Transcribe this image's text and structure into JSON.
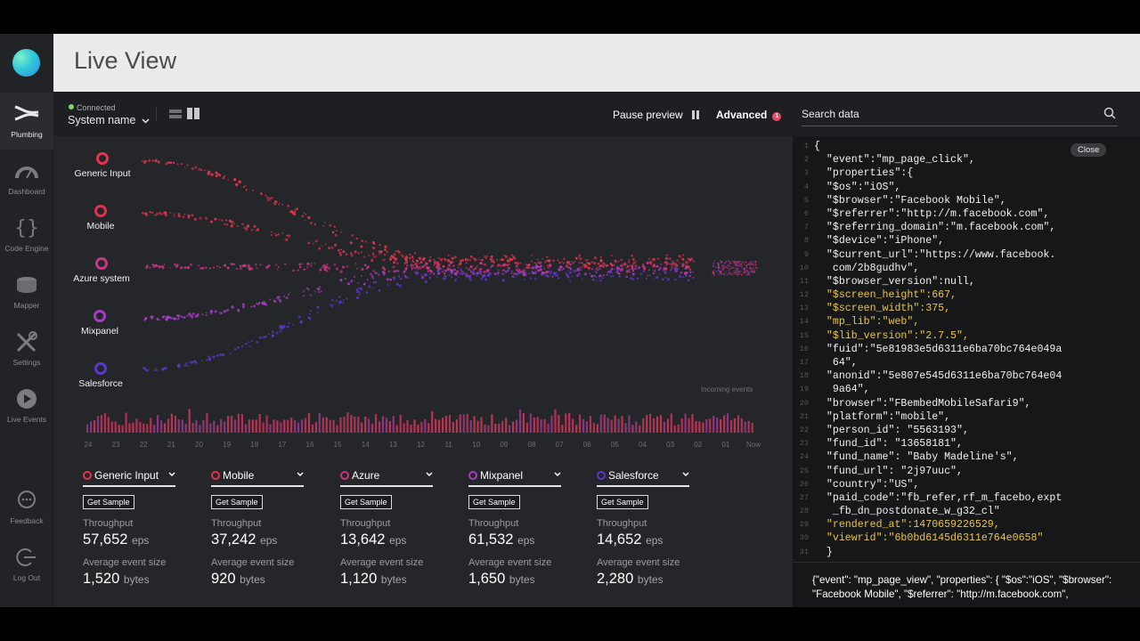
{
  "header": {
    "title": "Live View"
  },
  "sidebar": {
    "items": [
      {
        "label": "Plumbing",
        "icon": "plumbing-icon"
      },
      {
        "label": "Dashboard",
        "icon": "dashboard-icon"
      },
      {
        "label": "Code Engine",
        "icon": "code-engine-icon"
      },
      {
        "label": "Mapper",
        "icon": "mapper-icon"
      },
      {
        "label": "Settings",
        "icon": "settings-icon"
      },
      {
        "label": "Live Events",
        "icon": "live-events-icon"
      },
      {
        "label": "Feedback",
        "icon": "feedback-icon"
      },
      {
        "label": "Log Out",
        "icon": "logout-icon"
      }
    ]
  },
  "toolbar": {
    "status": "Connected",
    "system_name": "System name",
    "pause_label": "Pause preview",
    "advanced_label": "Advanced",
    "advanced_badge": "1",
    "search_placeholder": "Search data"
  },
  "sources": [
    {
      "name": "Generic Input",
      "color": "#e8354e"
    },
    {
      "name": "Mobile",
      "color": "#e0334d"
    },
    {
      "name": "Azure system",
      "color": "#c93585"
    },
    {
      "name": "Mixpanel",
      "color": "#a73cc6"
    },
    {
      "name": "Salesforce",
      "color": "#5c37c8"
    }
  ],
  "viz": {
    "incoming_label": "Incoming events",
    "axis": [
      "24",
      "23",
      "22",
      "21",
      "20",
      "19",
      "18",
      "17",
      "16",
      "15",
      "14",
      "13",
      "12",
      "11",
      "10",
      "09",
      "08",
      "07",
      "06",
      "05",
      "04",
      "03",
      "02",
      "01",
      "Now"
    ]
  },
  "stats": {
    "get_sample_label": "Get Sample",
    "throughput_label": "Throughput",
    "avg_size_label": "Average event size",
    "items": [
      {
        "name": "Generic Input",
        "color": "#e8354e",
        "throughput": "57,652",
        "throughput_unit": "eps",
        "avg_size": "1,520",
        "avg_unit": "bytes"
      },
      {
        "name": "Mobile",
        "color": "#e0334d",
        "throughput": "37,242",
        "throughput_unit": "eps",
        "avg_size": "920",
        "avg_unit": "bytes"
      },
      {
        "name": "Azure",
        "color": "#c93585",
        "throughput": "13,642",
        "throughput_unit": "eps",
        "avg_size": "1,120",
        "avg_unit": "bytes"
      },
      {
        "name": "Mixpanel",
        "color": "#a73cc6",
        "throughput": "61,532",
        "throughput_unit": "eps",
        "avg_size": "1,650",
        "avg_unit": "bytes"
      },
      {
        "name": "Salesforce",
        "color": "#5c37c8",
        "throughput": "14,652",
        "throughput_unit": "eps",
        "avg_size": "2,280",
        "avg_unit": "bytes"
      }
    ]
  },
  "code_panel": {
    "close_label": "Close",
    "lines": [
      {
        "n": "1",
        "t": "{"
      },
      {
        "n": "2",
        "t": "  \"event\":\"mp_page_click\","
      },
      {
        "n": "3",
        "t": "  \"properties\":{"
      },
      {
        "n": "4",
        "t": "  \"$os\":\"iOS\","
      },
      {
        "n": "5",
        "t": "  \"$browser\":\"Facebook Mobile\","
      },
      {
        "n": "6",
        "t": "  \"$referrer\":\"http://m.facebook.com\","
      },
      {
        "n": "7",
        "t": "  \"$referring_domain\":\"m.facebook.com\","
      },
      {
        "n": "8",
        "t": "  \"$device\":\"iPhone\","
      },
      {
        "n": "9",
        "t": "  \"$current_url\":\"https://www.facebook."
      },
      {
        "n": "10",
        "t": "   com/2b8gudhv\","
      },
      {
        "n": "11",
        "t": "  \"$browser_version\":null,"
      },
      {
        "n": "12",
        "t": "  \"$screen_height\":667,"
      },
      {
        "n": "13",
        "t": "  \"$screen_width\":375,"
      },
      {
        "n": "14",
        "t": "  \"mp_lib\":\"web\","
      },
      {
        "n": "15",
        "t": "  \"$lib_version\":\"2.7.5\","
      },
      {
        "n": "16",
        "t": "  \"fuid\":\"5e81983e5d6311e6ba70bc764e049a"
      },
      {
        "n": "17",
        "t": "   64\","
      },
      {
        "n": "18",
        "t": "  \"anonid\":\"5e807e545d6311e6ba70bc764e04"
      },
      {
        "n": "19",
        "t": "   9a64\","
      },
      {
        "n": "20",
        "t": "  \"browser\":\"FBembedMobileSafari9\","
      },
      {
        "n": "21",
        "t": "  \"platform\":\"mobile\","
      },
      {
        "n": "22",
        "t": "  \"person_id\": \"5563193\","
      },
      {
        "n": "23",
        "t": "  \"fund_id\": \"13658181\","
      },
      {
        "n": "24",
        "t": "  \"fund_name\": \"Baby Madeline's\","
      },
      {
        "n": "25",
        "t": "  \"fund_url\": \"2j97uuc\","
      },
      {
        "n": "26",
        "t": "  \"country\":\"US\","
      },
      {
        "n": "27",
        "t": "  \"paid_code\":\"fb_refer,rf_m_facebo,expt"
      },
      {
        "n": "28",
        "t": "   _fb_dn_postdonate_w_g32_cl\""
      },
      {
        "n": "29",
        "t": "  \"rendered_at\":1470659226529,"
      },
      {
        "n": "30",
        "t": "  \"viewrid\":\"6b0bd6145d6311e764e0658\""
      },
      {
        "n": "31",
        "t": "  }"
      }
    ],
    "preview": "{\"event\": \"mp_page_view\", \"properties\": { \"$os\":\"iOS\", \"$browser\": \"Facebook Mobile\", \"$referrer\": \"http://m.facebook.com\","
  }
}
